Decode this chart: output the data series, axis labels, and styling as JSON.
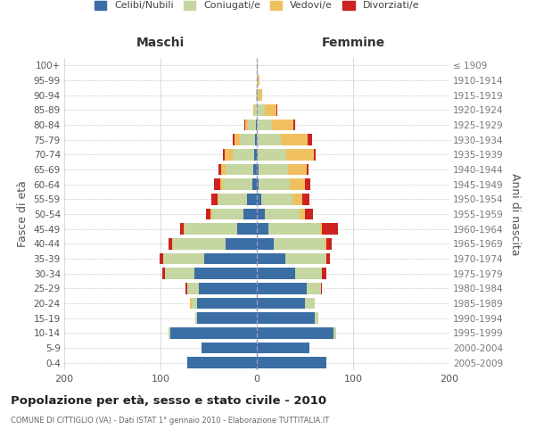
{
  "age_groups": [
    "0-4",
    "5-9",
    "10-14",
    "15-19",
    "20-24",
    "25-29",
    "30-34",
    "35-39",
    "40-44",
    "45-49",
    "50-54",
    "55-59",
    "60-64",
    "65-69",
    "70-74",
    "75-79",
    "80-84",
    "85-89",
    "90-94",
    "95-99",
    "100+"
  ],
  "birth_years": [
    "2005-2009",
    "2000-2004",
    "1995-1999",
    "1990-1994",
    "1985-1989",
    "1980-1984",
    "1975-1979",
    "1970-1974",
    "1965-1969",
    "1960-1964",
    "1955-1959",
    "1950-1954",
    "1945-1949",
    "1940-1944",
    "1935-1939",
    "1930-1934",
    "1925-1929",
    "1920-1924",
    "1915-1919",
    "1910-1914",
    "≤ 1909"
  ],
  "maschi": {
    "celibi": [
      72,
      57,
      90,
      62,
      62,
      60,
      65,
      55,
      32,
      20,
      14,
      10,
      5,
      4,
      3,
      2,
      1,
      0,
      0,
      0,
      0
    ],
    "coniugati": [
      0,
      0,
      2,
      2,
      6,
      12,
      30,
      42,
      55,
      55,
      32,
      30,
      30,
      28,
      22,
      16,
      8,
      3,
      1,
      0,
      0
    ],
    "vedovi": [
      0,
      0,
      0,
      0,
      1,
      0,
      0,
      0,
      1,
      1,
      2,
      1,
      3,
      5,
      8,
      5,
      3,
      1,
      0,
      0,
      0
    ],
    "divorziati": [
      0,
      0,
      0,
      0,
      0,
      2,
      3,
      4,
      4,
      4,
      5,
      6,
      6,
      3,
      2,
      2,
      1,
      0,
      0,
      0,
      0
    ]
  },
  "femmine": {
    "nubili": [
      72,
      55,
      80,
      60,
      50,
      52,
      40,
      30,
      18,
      12,
      8,
      5,
      2,
      2,
      1,
      0,
      0,
      0,
      0,
      0,
      0
    ],
    "coniugate": [
      0,
      0,
      2,
      4,
      10,
      15,
      28,
      42,
      52,
      54,
      36,
      32,
      32,
      30,
      30,
      25,
      16,
      8,
      2,
      1,
      0
    ],
    "vedove": [
      0,
      0,
      0,
      0,
      0,
      0,
      0,
      0,
      2,
      2,
      6,
      10,
      16,
      20,
      28,
      28,
      22,
      12,
      4,
      2,
      1
    ],
    "divorziate": [
      0,
      0,
      0,
      0,
      0,
      1,
      4,
      4,
      6,
      16,
      8,
      8,
      6,
      2,
      2,
      4,
      2,
      1,
      0,
      0,
      0
    ]
  },
  "colors": {
    "celibi": "#3b6ea5",
    "coniugati": "#c5d6a0",
    "vedovi": "#f0c060",
    "divorziati": "#cc2222"
  },
  "xlim": 200,
  "title": "Popolazione per età, sesso e stato civile - 2010",
  "subtitle": "COMUNE DI CITTIGLIO (VA) - Dati ISTAT 1° gennaio 2010 - Elaborazione TUTTITALIA.IT",
  "ylabel_left": "Fasce di età",
  "ylabel_right": "Anni di nascita",
  "xlabel_maschi": "Maschi",
  "xlabel_femmine": "Femmine",
  "bg_color": "#ffffff",
  "grid_color": "#cccccc"
}
